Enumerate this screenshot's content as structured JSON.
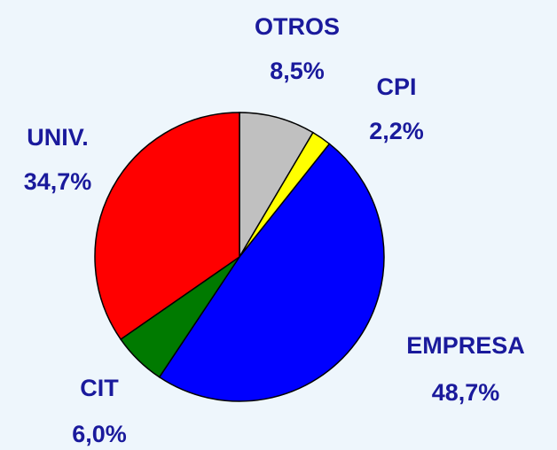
{
  "chart_data": {
    "type": "pie",
    "categories": [
      "OTROS",
      "CPI",
      "EMPRESA",
      "CIT",
      "UNIV."
    ],
    "values": [
      8.5,
      2.2,
      48.7,
      6.0,
      34.7
    ],
    "value_labels": [
      "8,5%",
      "2,2%",
      "48,7%",
      "6,0%",
      "34,7%"
    ],
    "colors": [
      "#c0c0c0",
      "#ffff00",
      "#0000ff",
      "#007a00",
      "#ff0000"
    ]
  }
}
